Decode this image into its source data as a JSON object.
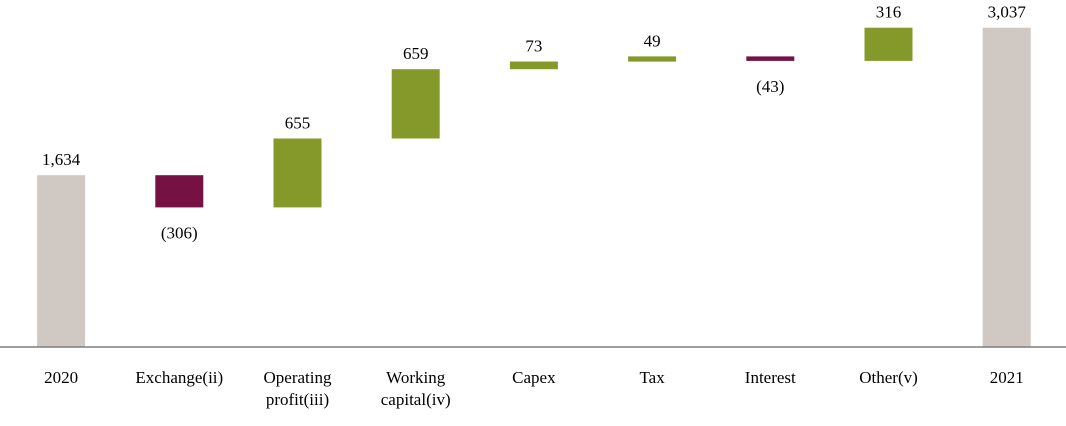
{
  "chart_data": {
    "type": "waterfall",
    "title": "",
    "xlabel": "",
    "ylabel": "",
    "ylim": [
      0,
      3300
    ],
    "grid": false,
    "legend": "none",
    "colors": {
      "total": "#d0c8c3",
      "increase": "#84992a",
      "decrease": "#761243",
      "axis": "#7f7f7f"
    },
    "steps": [
      {
        "category": [
          "2020"
        ],
        "kind": "total",
        "value": 1634,
        "label": "1,634"
      },
      {
        "category": [
          "Exchange(ii)"
        ],
        "kind": "decrease",
        "value": -306,
        "label": "(306)"
      },
      {
        "category": [
          "Operating",
          "profit(iii)"
        ],
        "kind": "increase",
        "value": 655,
        "label": "655"
      },
      {
        "category": [
          "Working",
          "capital(iv)"
        ],
        "kind": "increase",
        "value": 659,
        "label": "659"
      },
      {
        "category": [
          "Capex"
        ],
        "kind": "increase",
        "value": 73,
        "label": "73"
      },
      {
        "category": [
          "Tax"
        ],
        "kind": "increase",
        "value": 49,
        "label": "49"
      },
      {
        "category": [
          "Interest"
        ],
        "kind": "decrease",
        "value": -43,
        "label": "(43)"
      },
      {
        "category": [
          "Other(v)"
        ],
        "kind": "increase",
        "value": 316,
        "label": "316"
      },
      {
        "category": [
          "2021"
        ],
        "kind": "total",
        "value": 3037,
        "label": "3,037"
      }
    ]
  }
}
